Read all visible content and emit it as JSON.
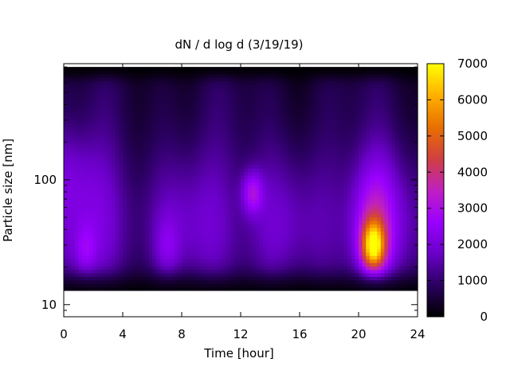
{
  "chart_data": {
    "type": "heatmap",
    "title": "dN / d log d (3/19/19)",
    "xlabel": "Time [hour]",
    "ylabel": "Particle size [nm]",
    "x_ticks": [
      0,
      4,
      8,
      12,
      16,
      20,
      24
    ],
    "xlim": [
      0,
      24
    ],
    "y_scale": "log",
    "y_ticks": [
      10,
      100
    ],
    "ylim": [
      8,
      850
    ],
    "colorbar_ticks": [
      0,
      1000,
      2000,
      3000,
      4000,
      5000,
      6000,
      7000
    ],
    "colorbar_range": [
      0,
      7000
    ],
    "colormap": [
      "#000000",
      "#2a0060",
      "#6a00c8",
      "#9a00ff",
      "#c020c0",
      "#d04040",
      "#e87000",
      "#ffb000",
      "#ffff00"
    ],
    "size_range_nm": [
      13,
      800
    ],
    "data_summary": [
      {
        "time_hour": 21.0,
        "size_nm": 30,
        "value": 6500
      },
      {
        "time_hour": 12.8,
        "size_nm": 80,
        "value": 2800
      },
      {
        "time_hour": 1.5,
        "size_nm": 25,
        "value": 1600
      },
      {
        "time_hour": 7.0,
        "size_nm": 30,
        "value": 1500
      },
      {
        "time_hour": 0.5,
        "size_nm": 120,
        "value": 2000
      }
    ]
  }
}
